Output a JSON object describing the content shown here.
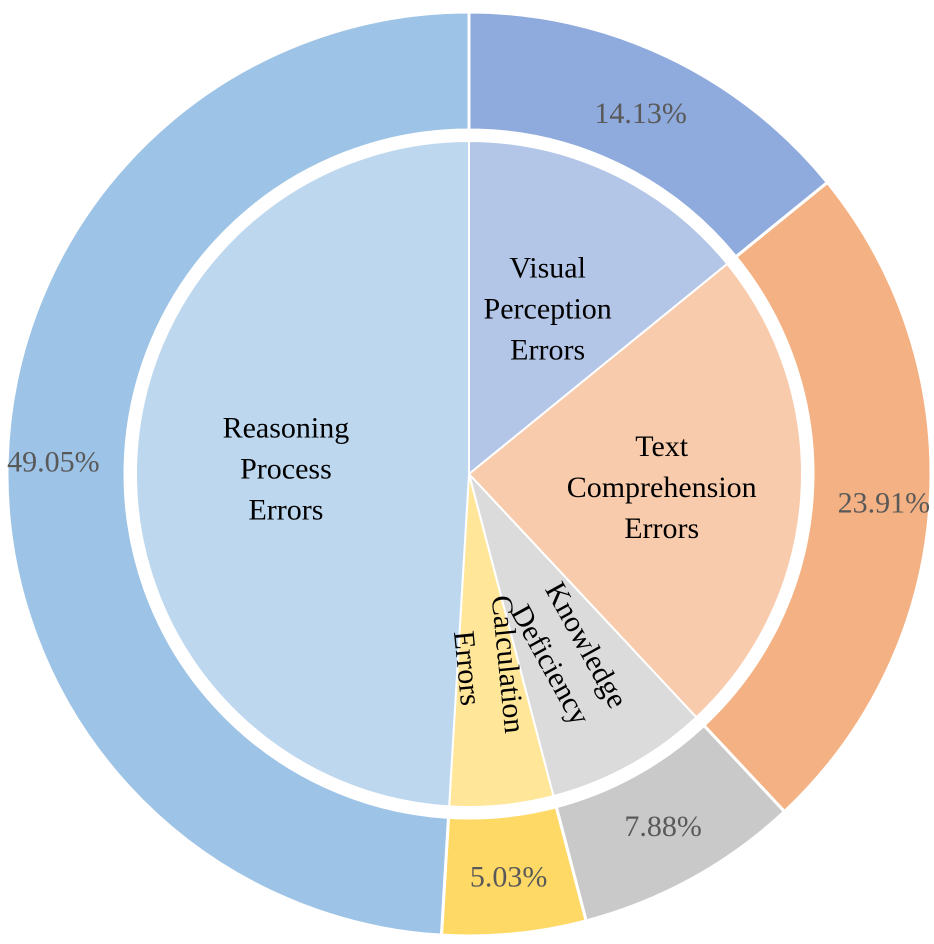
{
  "chart_data": {
    "type": "pie",
    "variant": "nested-donut",
    "title": "",
    "legend": "none",
    "slices": [
      {
        "name": "Visual Perception Errors",
        "lines": [
          "Visual",
          "Perception",
          "Errors"
        ],
        "value": 14.13,
        "pct_label": "14.13%",
        "inner_color": "#b4c6e7",
        "outer_color": "#8faadc"
      },
      {
        "name": "Text Comprehension Errors",
        "lines": [
          "Text",
          "Comprehension",
          "Errors"
        ],
        "value": 23.91,
        "pct_label": "23.91%",
        "inner_color": "#f8cbad",
        "outer_color": "#f4b183"
      },
      {
        "name": "Knowledge Deficiency",
        "lines": [
          "Knowledge",
          "Deficiency"
        ],
        "value": 7.88,
        "pct_label": "7.88%",
        "inner_color": "#dbdbdb",
        "outer_color": "#c9c9c9"
      },
      {
        "name": "Calculation Errors",
        "lines": [
          "Calculation",
          "Errors"
        ],
        "value": 5.03,
        "pct_label": "5.03%",
        "inner_color": "#ffe699",
        "outer_color": "#ffd966"
      },
      {
        "name": "Reasoning Process Errors",
        "lines": [
          "Reasoning",
          "Process",
          "Errors"
        ],
        "value": 49.05,
        "pct_label": "49.05%",
        "inner_color": "#bdd7ee",
        "outer_color": "#9dc3e6"
      }
    ]
  }
}
